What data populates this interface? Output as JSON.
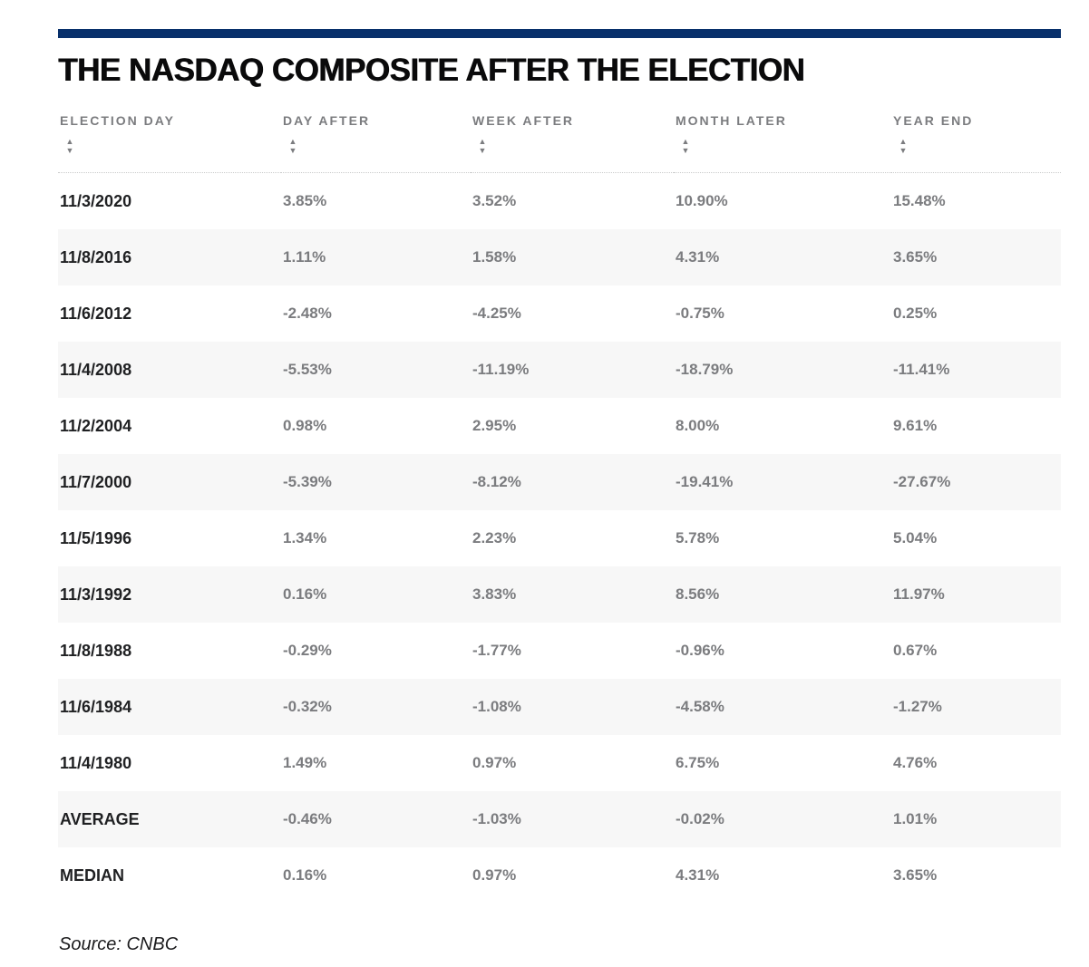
{
  "header": {
    "accent_color": "#08306b",
    "title_color": "#0a0a0b",
    "row_alt_color": "#f7f7f7",
    "text_gray": "#7b7c7f"
  },
  "chart_data": {
    "type": "table",
    "title": "THE NASDAQ COMPOSITE AFTER THE ELECTION",
    "columns": [
      "ELECTION DAY",
      "DAY AFTER",
      "WEEK AFTER",
      "MONTH LATER",
      "YEAR END"
    ],
    "rows": [
      [
        "11/3/2020",
        "3.85%",
        "3.52%",
        "10.90%",
        "15.48%"
      ],
      [
        "11/8/2016",
        "1.11%",
        "1.58%",
        "4.31%",
        "3.65%"
      ],
      [
        "11/6/2012",
        "-2.48%",
        "-4.25%",
        "-0.75%",
        "0.25%"
      ],
      [
        "11/4/2008",
        "-5.53%",
        "-11.19%",
        "-18.79%",
        "-11.41%"
      ],
      [
        "11/2/2004",
        "0.98%",
        "2.95%",
        "8.00%",
        "9.61%"
      ],
      [
        "11/7/2000",
        "-5.39%",
        "-8.12%",
        "-19.41%",
        "-27.67%"
      ],
      [
        "11/5/1996",
        "1.34%",
        "2.23%",
        "5.78%",
        "5.04%"
      ],
      [
        "11/3/1992",
        "0.16%",
        "3.83%",
        "8.56%",
        "11.97%"
      ],
      [
        "11/8/1988",
        "-0.29%",
        "-1.77%",
        "-0.96%",
        "0.67%"
      ],
      [
        "11/6/1984",
        "-0.32%",
        "-1.08%",
        "-4.58%",
        "-1.27%"
      ],
      [
        "11/4/1980",
        "1.49%",
        "0.97%",
        "6.75%",
        "4.76%"
      ],
      [
        "AVERAGE",
        "-0.46%",
        "-1.03%",
        "-0.02%",
        "1.01%"
      ],
      [
        "MEDIAN",
        "0.16%",
        "0.97%",
        "4.31%",
        "3.65%"
      ]
    ],
    "source": "Source: CNBC",
    "sort_icon": "sort-arrows",
    "legend_position": "none",
    "grid": "alternating-row-shading"
  }
}
